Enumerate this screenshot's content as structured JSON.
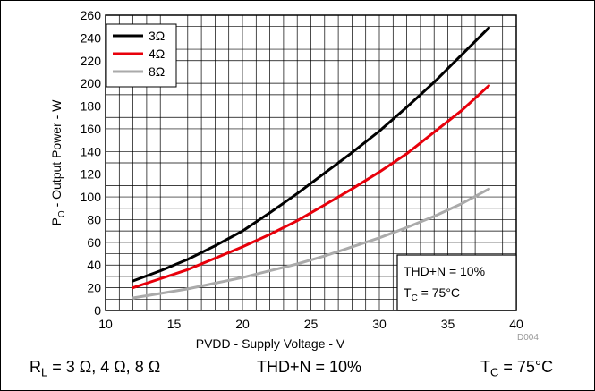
{
  "chart_data": {
    "type": "line",
    "xlabel": "PVDD - Supply Voltage - V",
    "ylabel_main": "P",
    "ylabel_sub": "O",
    "ylabel_rest": " - Output Power - W",
    "xlim": [
      10,
      40
    ],
    "ylim": [
      0,
      260
    ],
    "xticks": [
      10,
      15,
      20,
      25,
      30,
      35,
      40
    ],
    "yticks": [
      0,
      20,
      40,
      60,
      80,
      100,
      120,
      140,
      160,
      180,
      200,
      220,
      240,
      260
    ],
    "grid": true,
    "legend_position": "top-left",
    "series": [
      {
        "name": "3Ω",
        "color": "#000000",
        "x": [
          12,
          14,
          16,
          18,
          20,
          22,
          24,
          26,
          28,
          30,
          32,
          34,
          36,
          38
        ],
        "y": [
          26,
          35,
          45,
          57,
          70,
          86,
          103,
          121,
          139,
          158,
          179,
          201,
          225,
          249
        ]
      },
      {
        "name": "4Ω",
        "color": "#e8000b",
        "x": [
          12,
          14,
          16,
          18,
          20,
          22,
          24,
          26,
          28,
          30,
          32,
          34,
          36,
          38
        ],
        "y": [
          20,
          28,
          36,
          46,
          56,
          67,
          79,
          93,
          107,
          122,
          138,
          157,
          176,
          198
        ]
      },
      {
        "name": "8Ω",
        "color": "#aaaaaa",
        "x": [
          12,
          14,
          16,
          18,
          20,
          22,
          24,
          26,
          28,
          30,
          32,
          34,
          36,
          38
        ],
        "y": [
          11,
          15,
          19,
          24,
          29,
          35,
          41,
          48,
          56,
          64,
          73,
          83,
          94,
          107
        ]
      }
    ],
    "annotation": {
      "line1": "THD+N = 10%",
      "line2_main": "T",
      "line2_sub": "C",
      "line2_rest": " = 75°C"
    },
    "figure_id": "D004"
  },
  "conditions": {
    "left_main": "R",
    "left_sub": "L",
    "left_rest": " = 3 Ω, 4 Ω, 8 Ω",
    "mid": "THD+N = 10%",
    "right_main": "T",
    "right_sub": "C",
    "right_rest": " = 75°C"
  }
}
